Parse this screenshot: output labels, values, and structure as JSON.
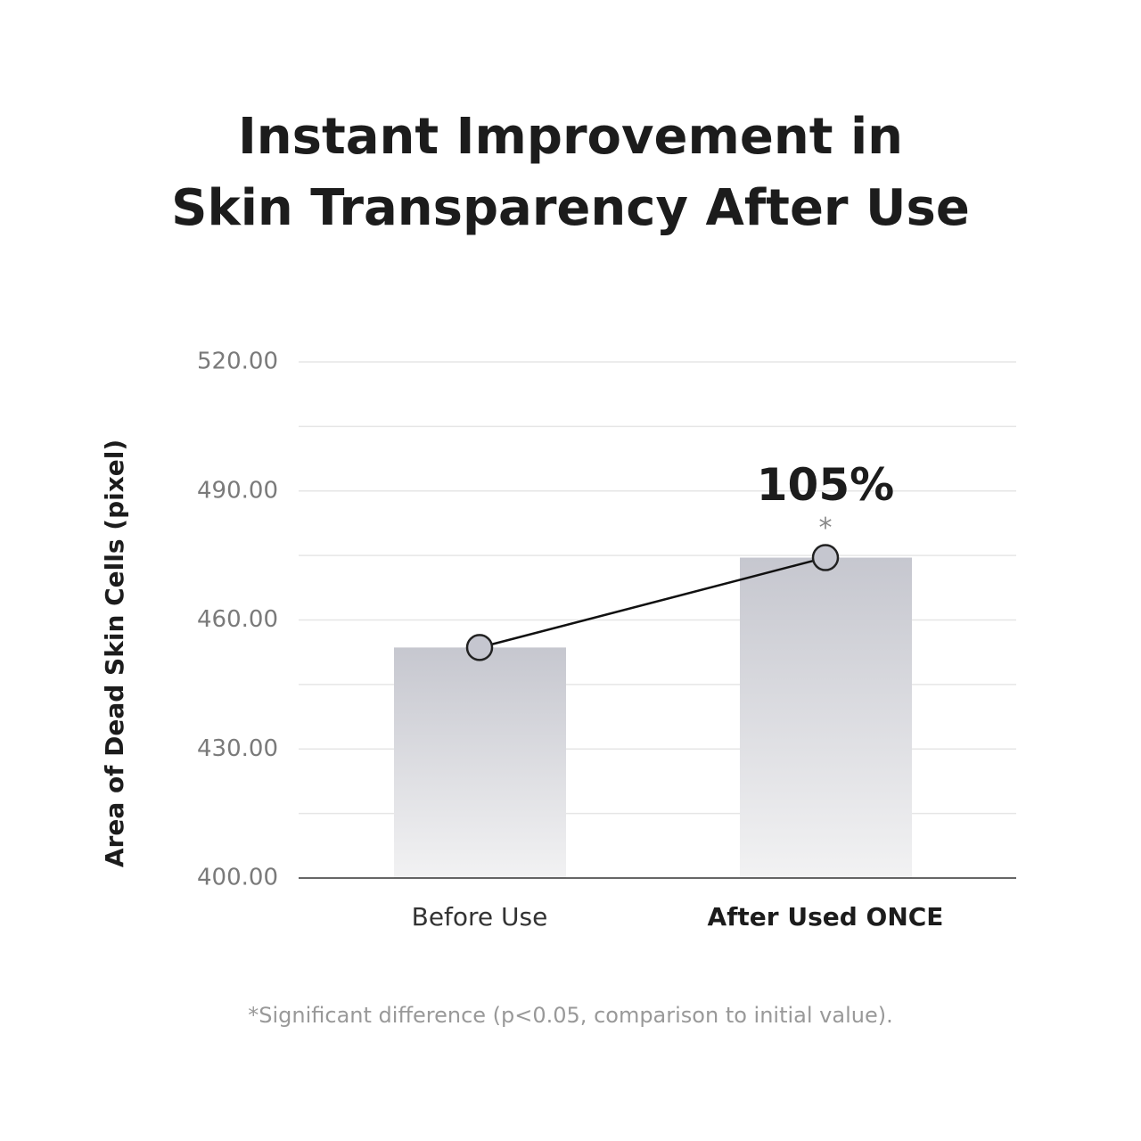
{
  "chart_data": {
    "type": "bar",
    "title": [
      "Instant Improvement in",
      "Skin Transparency After Use"
    ],
    "y_label": "Area of Dead Skin Cells (pixel)",
    "categories": [
      "Before Use",
      "After Used ONCE"
    ],
    "values": [
      453.6,
      474.5
    ],
    "color": "#c5c6cf",
    "connector_line": true,
    "highlight_category": 1,
    "ylim": [
      400,
      520
    ],
    "yticks": [
      {
        "value": 400,
        "label": "400.00"
      },
      {
        "value": 430,
        "label": "430.00"
      },
      {
        "value": 460,
        "label": "460.00"
      },
      {
        "value": 490,
        "label": "490.00"
      },
      {
        "value": 520,
        "label": "520.00"
      }
    ],
    "minor_yticks": [
      415,
      445,
      475,
      505
    ],
    "grid": true,
    "annotations": [
      {
        "text": "105%",
        "category": 1
      },
      {
        "text": "*",
        "category": 1
      }
    ],
    "footnote": "*Significant difference (p<0.05, comparison to initial value)."
  }
}
